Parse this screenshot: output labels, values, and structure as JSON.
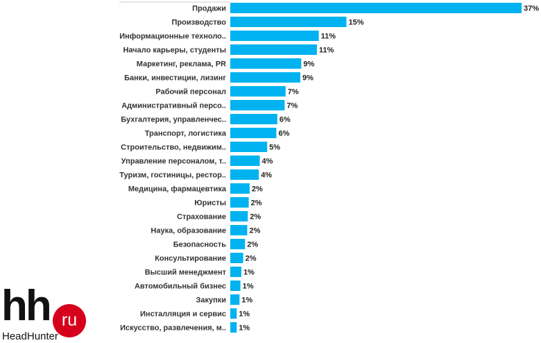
{
  "chart_data": {
    "type": "bar",
    "orientation": "horizontal",
    "categories": [
      "Продажи",
      "Производство",
      "Информационные техноло..",
      "Начало карьеры, студенты",
      "Маркетинг, реклама, PR",
      "Банки, инвестиции, лизинг",
      "Рабочий персонал",
      "Административный персо..",
      "Бухгалтерия, управленчес..",
      "Транспорт, логистика",
      "Строительство, недвижим..",
      "Управление персоналом, т..",
      "Туризм, гостиницы, рестор..",
      "Медицина, фармацевтика",
      "Юристы",
      "Страхование",
      "Наука, образование",
      "Безопасность",
      "Консультирование",
      "Высший менеджмент",
      "Автомобильный бизнес",
      "Закупки",
      "Инсталляция и сервис",
      "Искусство, развлечения, м.."
    ],
    "values": [
      37,
      15,
      11,
      11,
      9,
      9,
      7,
      7,
      6,
      6,
      5,
      4,
      4,
      2,
      2,
      2,
      2,
      2,
      2,
      1,
      1,
      1,
      1,
      1
    ],
    "value_labels": [
      "37%",
      "15%",
      "11%",
      "11%",
      "9%",
      "9%",
      "7%",
      "7%",
      "6%",
      "6%",
      "5%",
      "4%",
      "4%",
      "2%",
      "2%",
      "2%",
      "2%",
      "2%",
      "2%",
      "1%",
      "1%",
      "1%",
      "1%",
      "1%"
    ],
    "bar_values": [
      15.8,
      6.3,
      4.8,
      4.7,
      3.85,
      3.8,
      3.0,
      2.95,
      2.55,
      2.5,
      2.0,
      1.6,
      1.55,
      1.05,
      1.0,
      0.95,
      0.92,
      0.8,
      0.7,
      0.6,
      0.55,
      0.5,
      0.35,
      0.35
    ],
    "xlim": [
      0,
      15.8
    ],
    "grid": false,
    "legend": "none",
    "bar_color": "#00b3f0"
  },
  "logo": {
    "mark": "hh",
    "badge": "ru",
    "name": "HeadHunter",
    "badge_color": "#d6001c"
  }
}
